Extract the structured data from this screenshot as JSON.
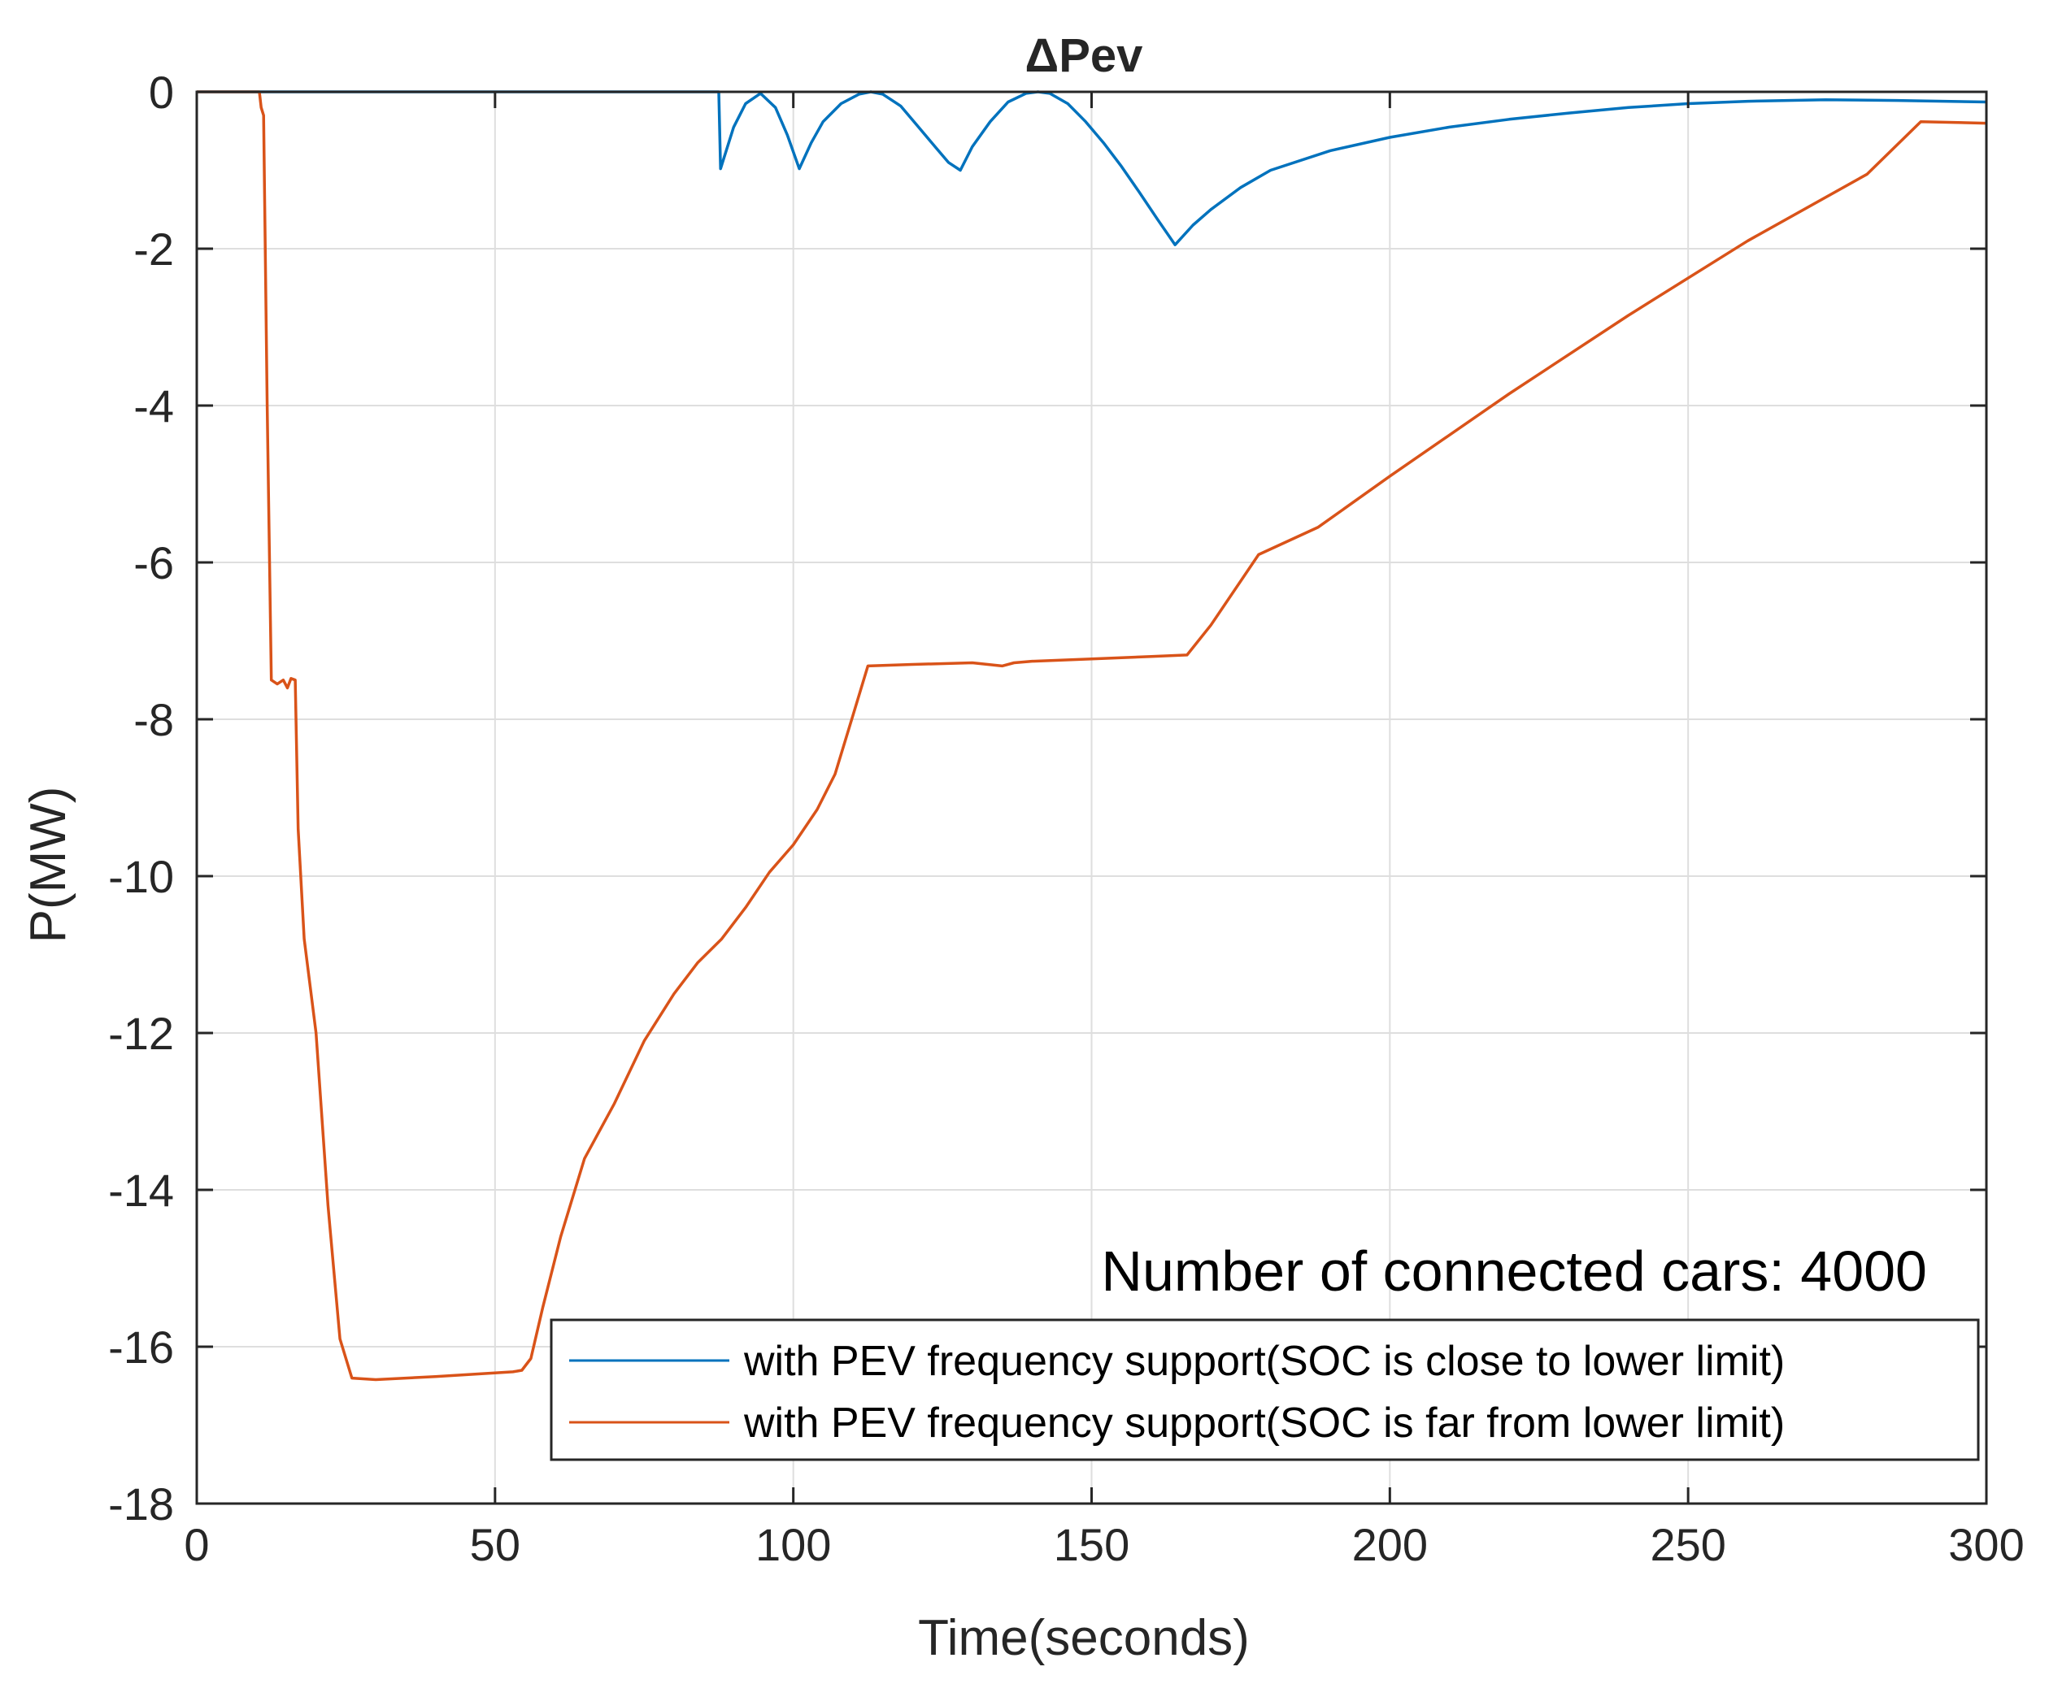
{
  "chart_data": {
    "type": "line",
    "title": "ΔPev",
    "xlabel": "Time(seconds)",
    "ylabel": "P(MW)",
    "xlim": [
      0,
      300
    ],
    "ylim": [
      -18,
      0
    ],
    "xticks": [
      "0",
      "50",
      "100",
      "150",
      "200",
      "250",
      "300"
    ],
    "yticks": [
      "0",
      "-2",
      "-4",
      "-6",
      "-8",
      "-10",
      "-12",
      "-14",
      "-16",
      "-18"
    ],
    "grid": true,
    "legend_position": "bottom-right",
    "annotation": "Number of connected cars: 4000",
    "series": [
      {
        "name": "with PEV frequency support(SOC is close to lower limit)",
        "color": "#0072BD",
        "x": [
          0,
          87.5,
          87.8,
          90,
          92,
          94.5,
          97,
          99,
          101,
          103,
          105,
          108,
          111,
          113,
          115,
          118,
          121,
          124,
          126,
          128,
          130,
          133,
          136,
          139,
          141,
          143,
          146,
          149,
          152,
          155,
          158,
          161,
          164,
          167,
          170,
          175,
          180,
          190,
          200,
          210,
          220,
          230,
          240,
          250,
          260,
          273,
          285,
          300
        ],
        "y": [
          0,
          0,
          -0.98,
          -0.45,
          -0.15,
          -0.02,
          -0.2,
          -0.55,
          -0.98,
          -0.65,
          -0.38,
          -0.15,
          -0.03,
          0,
          -0.03,
          -0.18,
          -0.45,
          -0.72,
          -0.9,
          -1.0,
          -0.7,
          -0.38,
          -0.13,
          -0.02,
          0,
          -0.02,
          -0.15,
          -0.38,
          -0.65,
          -0.95,
          -1.28,
          -1.62,
          -1.95,
          -1.7,
          -1.5,
          -1.22,
          -1.0,
          -0.75,
          -0.58,
          -0.45,
          -0.35,
          -0.27,
          -0.2,
          -0.15,
          -0.12,
          -0.1,
          -0.11,
          -0.13
        ]
      },
      {
        "name": "with PEV frequency support(SOC is far from lower limit)",
        "color": "#D95319",
        "x": [
          0,
          10.5,
          10.8,
          11.2,
          11.8,
          12.5,
          13.5,
          14.5,
          15.2,
          15.8,
          16.5,
          17,
          18,
          20,
          22,
          24,
          26,
          30,
          40,
          53,
          54.5,
          56,
          58,
          61,
          65,
          70,
          75,
          80,
          84,
          88,
          92,
          96,
          100,
          104,
          107,
          110,
          112.5,
          120,
          130,
          135,
          137,
          140,
          150,
          160,
          166,
          170,
          178,
          188,
          200,
          220,
          240,
          260,
          280,
          289,
          300
        ],
        "y": [
          0,
          0,
          -0.2,
          -0.3,
          -4.0,
          -7.5,
          -7.55,
          -7.5,
          -7.6,
          -7.48,
          -7.5,
          -9.4,
          -10.8,
          -12.0,
          -14.2,
          -15.9,
          -16.4,
          -16.42,
          -16.38,
          -16.32,
          -16.3,
          -16.15,
          -15.5,
          -14.6,
          -13.6,
          -12.9,
          -12.1,
          -11.5,
          -11.1,
          -10.8,
          -10.4,
          -9.95,
          -9.6,
          -9.15,
          -8.7,
          -7.95,
          -7.32,
          -7.3,
          -7.28,
          -7.32,
          -7.28,
          -7.26,
          -7.23,
          -7.2,
          -7.18,
          -6.8,
          -5.9,
          -5.55,
          -4.9,
          -3.85,
          -2.85,
          -1.9,
          -1.05,
          -0.38,
          -0.4
        ]
      }
    ]
  }
}
